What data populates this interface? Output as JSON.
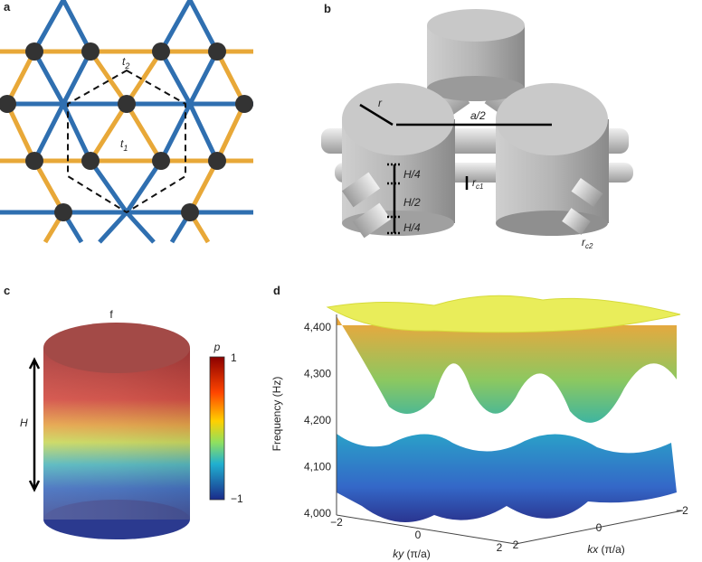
{
  "panels": {
    "a": {
      "label": "a",
      "t2": {
        "base": "t",
        "sub": "2"
      },
      "t1": {
        "base": "t",
        "sub": "1"
      }
    },
    "b": {
      "label": "b",
      "r": "r",
      "a_half": "a/2",
      "h_quarter_top": "H/4",
      "h_half": "H/2",
      "h_quarter_bottom": "H/4",
      "rc1": {
        "base": "r",
        "sub": "c1"
      },
      "rc2": {
        "base": "r",
        "sub": "c2"
      }
    },
    "c": {
      "label": "c",
      "f": "f",
      "H": "H",
      "colorbar_title": "p",
      "colorbar_max": "1",
      "colorbar_min": "−1"
    },
    "d": {
      "label": "d",
      "y_axis_title": "Frequency (Hz)",
      "y_ticks": [
        "4,400",
        "4,300",
        "4,200",
        "4,100",
        "4,000"
      ],
      "ky_ticks": [
        "−2",
        "0",
        "2"
      ],
      "ky_title": {
        "base": "ky",
        "unit": " (π/a)"
      },
      "kx_ticks": [
        "2",
        "0",
        "−2"
      ],
      "kx_title": {
        "base": "kx",
        "unit": " (π/a)"
      }
    }
  }
}
